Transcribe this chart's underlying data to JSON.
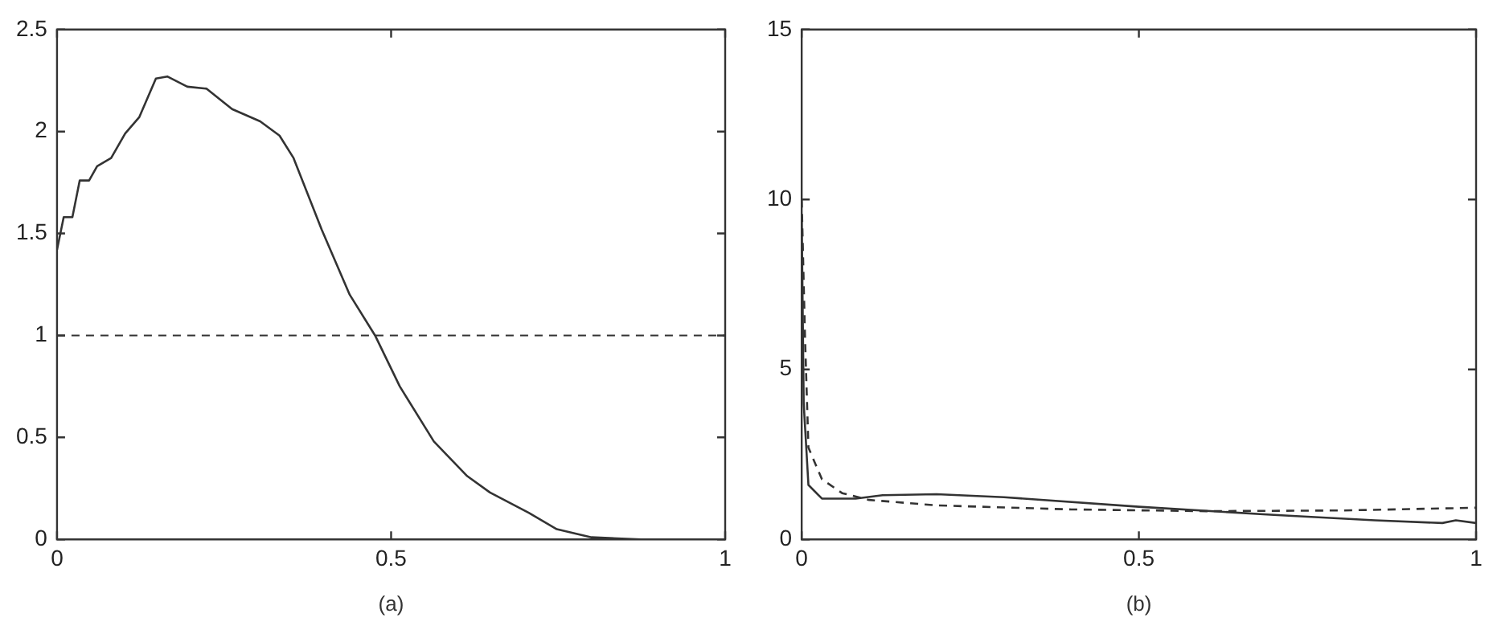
{
  "chart_data": [
    {
      "type": "line",
      "xlabel": "(a)",
      "xlim": [
        0,
        1
      ],
      "xticks": [
        0,
        0.5,
        1
      ],
      "ylim": [
        0,
        2.5
      ],
      "yticks": [
        0,
        0.5,
        1,
        1.5,
        2,
        2.5
      ],
      "grid": false,
      "line_style": "solid",
      "marker": "none",
      "series": [
        {
          "color": "#333333",
          "x": [
            0,
            0.01,
            0.023,
            0.034,
            0.048,
            0.06,
            0.081,
            0.102,
            0.123,
            0.148,
            0.165,
            0.195,
            0.224,
            0.262,
            0.304,
            0.333,
            0.354,
            0.396,
            0.438,
            0.476,
            0.513,
            0.564,
            0.614,
            0.648,
            0.706,
            0.748,
            0.8,
            0.874,
            1
          ],
          "values": [
            1.42,
            1.58,
            1.58,
            1.76,
            1.76,
            1.83,
            1.87,
            1.99,
            2.07,
            2.26,
            2.27,
            2.22,
            2.21,
            2.11,
            2.05,
            1.98,
            1.87,
            1.52,
            1.2,
            1.0,
            0.75,
            0.48,
            0.31,
            0.23,
            0.13,
            0.05,
            0.01,
            0,
            0
          ]
        }
      ],
      "ref_lines": [
        {
          "axis": "y",
          "value": 1,
          "color": "#333333",
          "line_style": "dashed"
        }
      ]
    },
    {
      "type": "line",
      "xlabel": "(b)",
      "xlim": [
        0,
        1
      ],
      "xticks": [
        0,
        0.5,
        1
      ],
      "ylim": [
        0,
        15
      ],
      "yticks": [
        0,
        5,
        10,
        15
      ],
      "grid": false,
      "marker": "none",
      "series": [
        {
          "color": "#333333",
          "line_style": "solid",
          "x": [
            0,
            0.003,
            0.01,
            0.03,
            0.08,
            0.12,
            0.2,
            0.3,
            0.5,
            0.7,
            0.85,
            0.95,
            0.97,
            1
          ],
          "values": [
            9.5,
            4,
            1.6,
            1.2,
            1.2,
            1.3,
            1.33,
            1.24,
            0.96,
            0.72,
            0.56,
            0.48,
            0.56,
            0.48
          ]
        },
        {
          "color": "#333333",
          "line_style": "dashed",
          "x": [
            0,
            0.005,
            0.01,
            0.03,
            0.06,
            0.1,
            0.2,
            0.4,
            0.6,
            0.8,
            1
          ],
          "values": [
            10,
            5.9,
            2.7,
            1.77,
            1.36,
            1.16,
            1.0,
            0.88,
            0.83,
            0.85,
            0.93
          ]
        }
      ]
    }
  ]
}
